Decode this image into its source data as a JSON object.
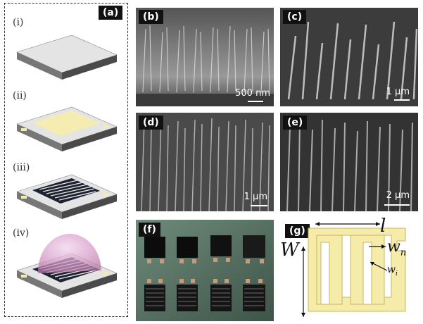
{
  "panel_a": {
    "tag": "(a)",
    "steps": [
      "(i)",
      "(ii)",
      "(iii)",
      "(iv)"
    ]
  },
  "sem_panels": [
    {
      "tag": "(b)",
      "scale": "500 nm"
    },
    {
      "tag": "(c)",
      "scale": "1 µm"
    },
    {
      "tag": "(d)",
      "scale": "1 µm"
    },
    {
      "tag": "(e)",
      "scale": "2 µm"
    }
  ],
  "photo": {
    "tag": "(f)"
  },
  "schematic": {
    "tag": "(g)",
    "labels": {
      "l": "l",
      "W": "W",
      "wn": "w",
      "wn_sub": "n",
      "wi": "w",
      "wi_sub": "i"
    }
  },
  "colors": {
    "electrode": "#f5ecaa",
    "electrode_edge": "#c9b460",
    "dome": "#d79ac8",
    "substrate_top": "#e4e4e4",
    "substrate_side": "#5a5a5a"
  }
}
